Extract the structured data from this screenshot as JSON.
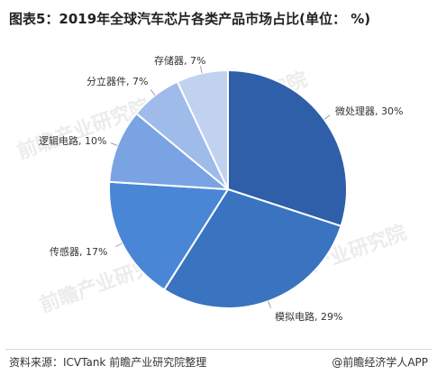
{
  "header": {
    "title": "图表5：2019年全球汽车芯片各类产品市场占比(单位： %)"
  },
  "footer": {
    "source": "资料来源：ICVTank 前瞻产业研究院整理",
    "brand": "@前瞻经济学人APP"
  },
  "watermark": {
    "text": "前瞻产业研究院",
    "color": "#c9c9c9"
  },
  "chart_data": {
    "type": "pie",
    "title": "图表5：2019年全球汽车芯片各类产品市场占比(单位： %)",
    "legend": "none",
    "start": "12 o'clock, clockwise",
    "slices": [
      {
        "name": "微处理器",
        "value": 30,
        "label": "微处理器, 30%",
        "color": "#2e5fa8"
      },
      {
        "name": "模拟电路",
        "value": 29,
        "label": "模拟电路, 29%",
        "color": "#3a73c0"
      },
      {
        "name": "传感器",
        "value": 17,
        "label": "传感器, 17%",
        "color": "#4a86d6"
      },
      {
        "name": "逻辑电路",
        "value": 10,
        "label": "逻辑电路, 10%",
        "color": "#7aa3e3"
      },
      {
        "name": "分立器件",
        "value": 7,
        "label": "分立器件, 7%",
        "color": "#9fbbea"
      },
      {
        "name": "存储器",
        "value": 7,
        "label": "存储器, 7%",
        "color": "#c1d2f0"
      }
    ]
  }
}
